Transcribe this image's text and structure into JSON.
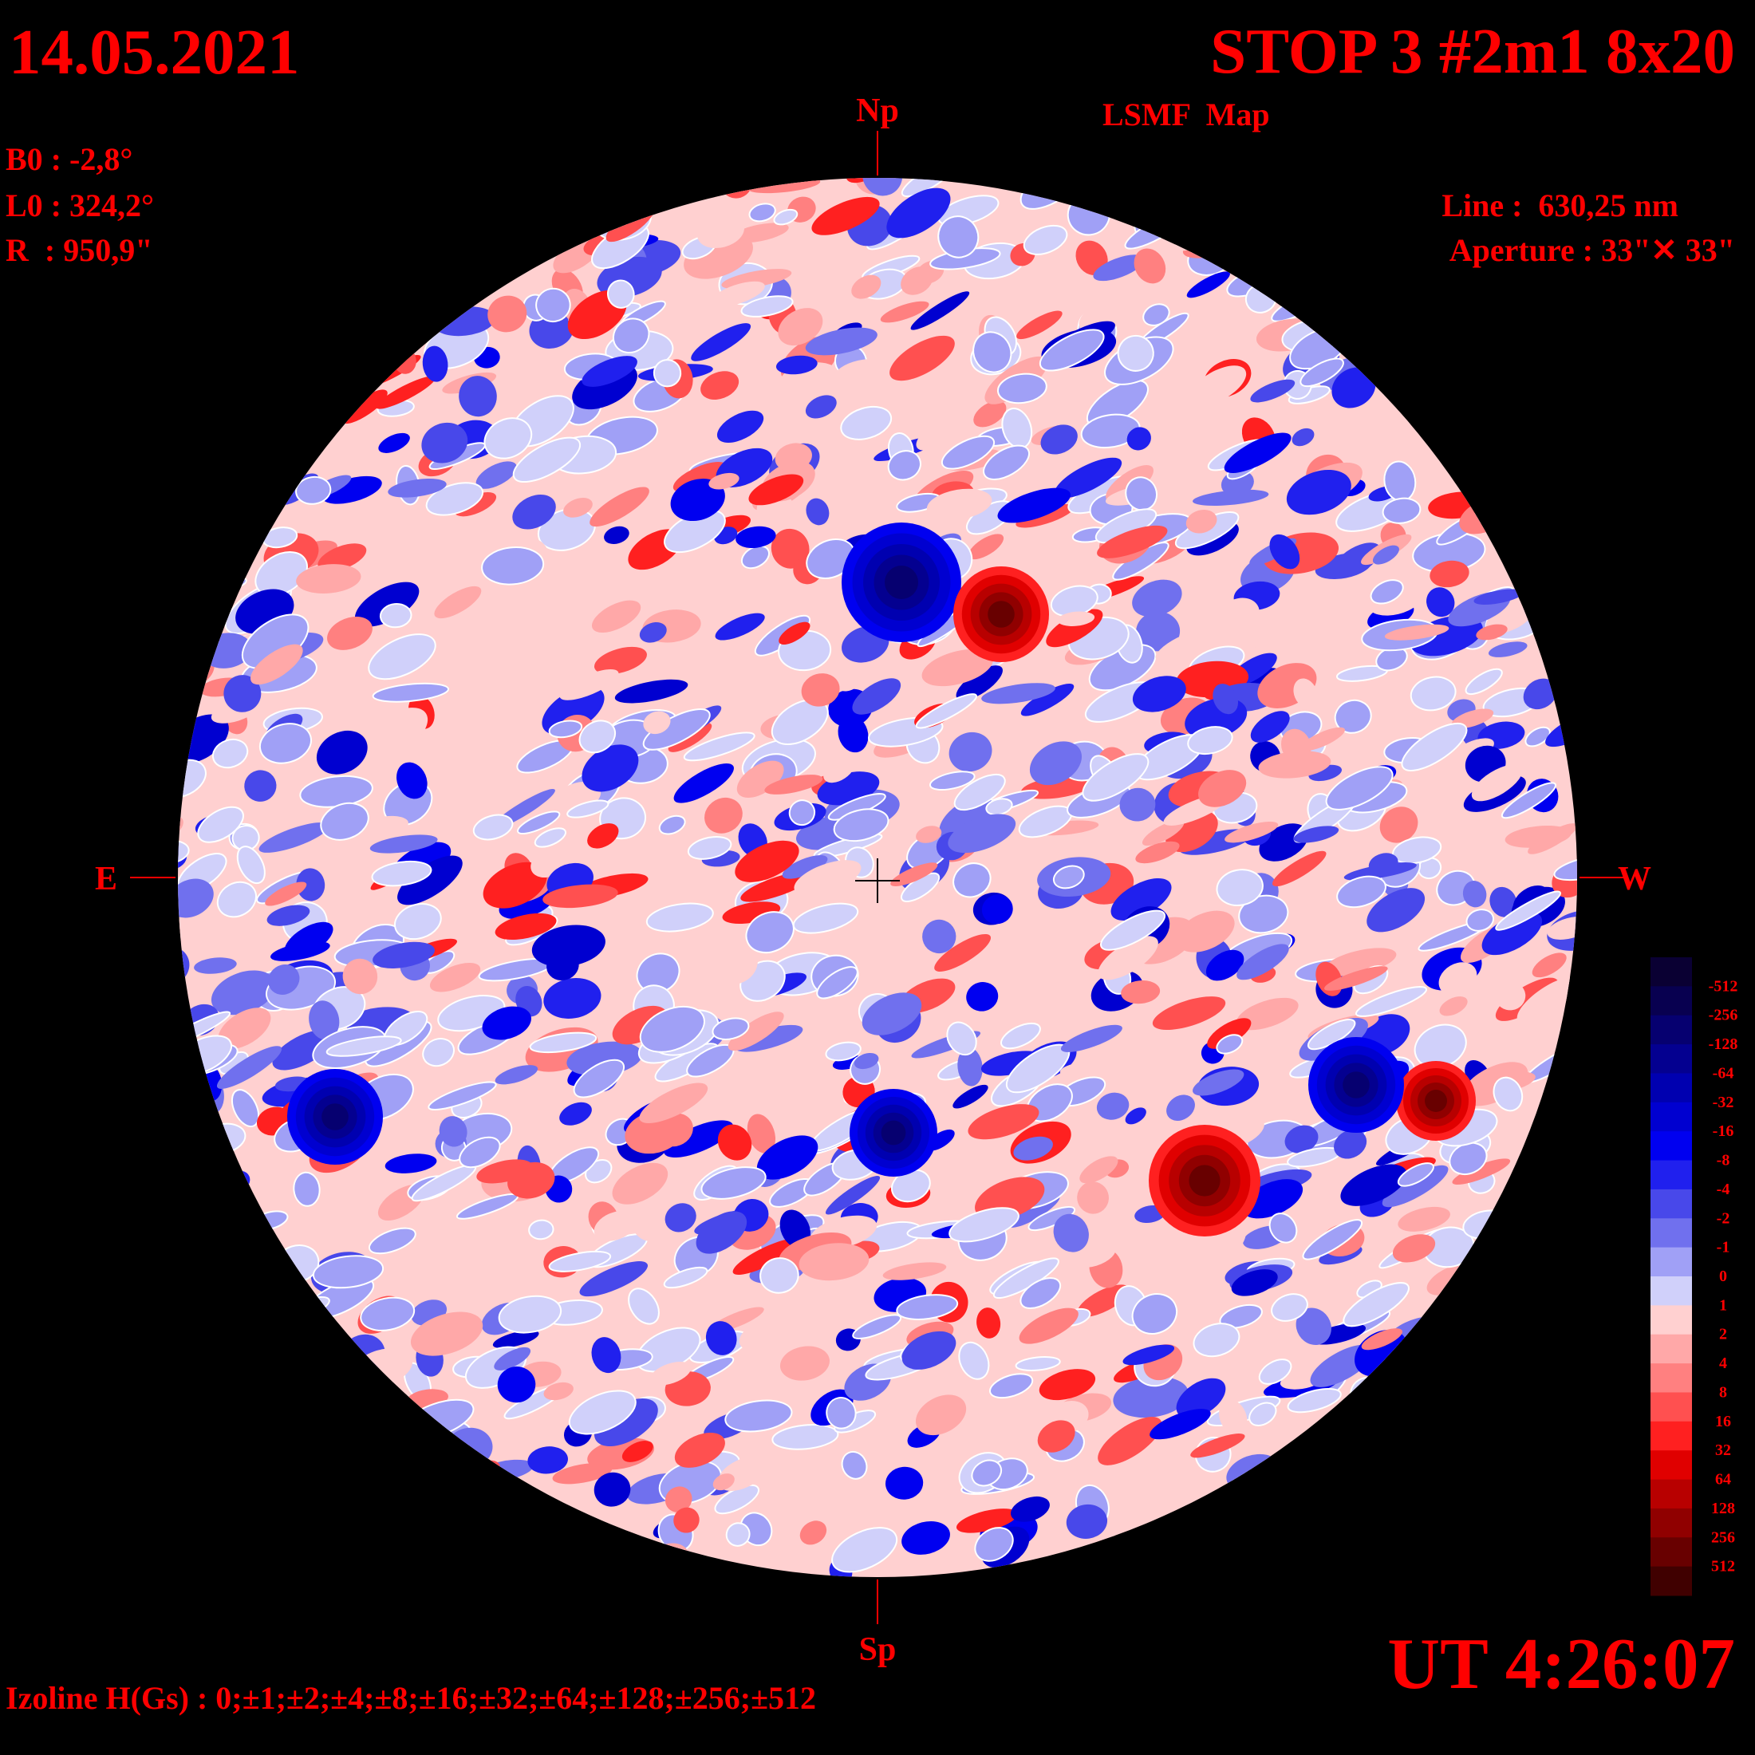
{
  "header": {
    "date": "14.05.2021",
    "title": "STOP 3 #2m1 8x20",
    "subtitle": "LSMF  Map"
  },
  "params": {
    "b0": "B0 : -2,8°",
    "l0": "L0 : 324,2°",
    "r": "R  : 950,9\""
  },
  "instrument": {
    "line": "Line :  630,25 nm",
    "aperture": "Aperture : 33\"✕ 33\""
  },
  "directions": {
    "north": "Np",
    "south": "Sp",
    "east": "E",
    "west": "W"
  },
  "colorbar": {
    "labels": [
      "-512",
      "-256",
      "-128",
      "-64",
      "-32",
      "-16",
      "-8",
      "-4",
      "-2",
      "-1",
      "0",
      "1",
      "2",
      "4",
      "8",
      "16",
      "32",
      "64",
      "128",
      "256",
      "512"
    ],
    "colors": [
      "#0a0033",
      "#080050",
      "#060070",
      "#040090",
      "#0000b0",
      "#0000d0",
      "#0000f0",
      "#2020ee",
      "#4848ea",
      "#7070ee",
      "#a0a0f6",
      "#d0d0fa",
      "#ffd0d0",
      "#ffa8a8",
      "#ff8080",
      "#ff5050",
      "#ff2020",
      "#e00000",
      "#b80000",
      "#900000",
      "#680000",
      "#400000"
    ]
  },
  "time": "UT 4:26:07",
  "footer": "Izoline H(Gs) : 0;±1;±2;±4;±8;±16;±32;±64;±128;±256;±512"
}
